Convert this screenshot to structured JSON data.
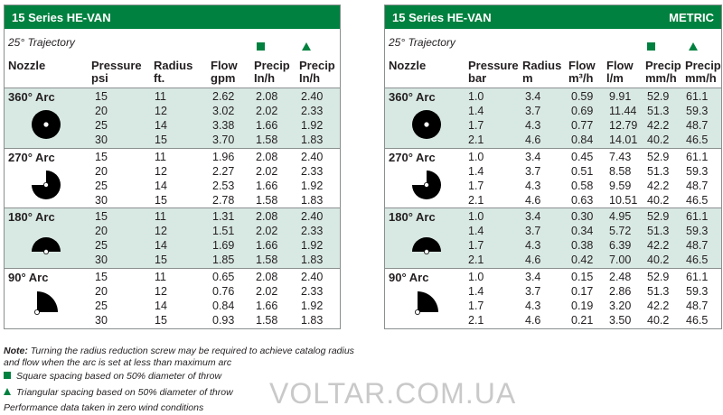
{
  "us": {
    "title": "15 Series HE-VAN",
    "trajectory": "25° Trajectory",
    "headers": {
      "nozzle": "Nozzle",
      "pressure": [
        "Pressure",
        "psi"
      ],
      "radius": [
        "Radius",
        "ft."
      ],
      "flow": [
        "Flow",
        "gpm"
      ],
      "precip_sq": [
        "Precip",
        "In/h"
      ],
      "precip_tri": [
        "Precip",
        "In/h"
      ]
    },
    "groups": [
      {
        "label": "360° Arc",
        "arc": "360",
        "rows": [
          [
            "15",
            "11",
            "2.62",
            "2.08",
            "2.40"
          ],
          [
            "20",
            "12",
            "3.02",
            "2.02",
            "2.33"
          ],
          [
            "25",
            "14",
            "3.38",
            "1.66",
            "1.92"
          ],
          [
            "30",
            "15",
            "3.70",
            "1.58",
            "1.83"
          ]
        ]
      },
      {
        "label": "270° Arc",
        "arc": "270",
        "rows": [
          [
            "15",
            "11",
            "1.96",
            "2.08",
            "2.40"
          ],
          [
            "20",
            "12",
            "2.27",
            "2.02",
            "2.33"
          ],
          [
            "25",
            "14",
            "2.53",
            "1.66",
            "1.92"
          ],
          [
            "30",
            "15",
            "2.78",
            "1.58",
            "1.83"
          ]
        ]
      },
      {
        "label": "180° Arc",
        "arc": "180",
        "rows": [
          [
            "15",
            "11",
            "1.31",
            "2.08",
            "2.40"
          ],
          [
            "20",
            "12",
            "1.51",
            "2.02",
            "2.33"
          ],
          [
            "25",
            "14",
            "1.69",
            "1.66",
            "1.92"
          ],
          [
            "30",
            "15",
            "1.85",
            "1.58",
            "1.83"
          ]
        ]
      },
      {
        "label": "90° Arc",
        "arc": "90",
        "rows": [
          [
            "15",
            "11",
            "0.65",
            "2.08",
            "2.40"
          ],
          [
            "20",
            "12",
            "0.76",
            "2.02",
            "2.33"
          ],
          [
            "25",
            "14",
            "0.84",
            "1.66",
            "1.92"
          ],
          [
            "30",
            "15",
            "0.93",
            "1.58",
            "1.83"
          ]
        ]
      }
    ]
  },
  "metric": {
    "title": "15 Series HE-VAN",
    "badge": "METRIC",
    "trajectory": "25° Trajectory",
    "headers": {
      "nozzle": "Nozzle",
      "pressure": [
        "Pressure",
        "bar"
      ],
      "radius": [
        "Radius",
        "m"
      ],
      "flow_m3": [
        "Flow",
        "m³/h"
      ],
      "flow_l": [
        "Flow",
        "l/m"
      ],
      "precip_sq": [
        "Precip",
        "mm/h"
      ],
      "precip_tri": [
        "Precip",
        "mm/h"
      ]
    },
    "groups": [
      {
        "label": "360° Arc",
        "arc": "360",
        "rows": [
          [
            "1.0",
            "3.4",
            "0.59",
            "9.91",
            "52.9",
            "61.1"
          ],
          [
            "1.4",
            "3.7",
            "0.69",
            "11.44",
            "51.3",
            "59.3"
          ],
          [
            "1.7",
            "4.3",
            "0.77",
            "12.79",
            "42.2",
            "48.7"
          ],
          [
            "2.1",
            "4.6",
            "0.84",
            "14.01",
            "40.2",
            "46.5"
          ]
        ]
      },
      {
        "label": "270° Arc",
        "arc": "270",
        "rows": [
          [
            "1.0",
            "3.4",
            "0.45",
            "7.43",
            "52.9",
            "61.1"
          ],
          [
            "1.4",
            "3.7",
            "0.51",
            "8.58",
            "51.3",
            "59.3"
          ],
          [
            "1.7",
            "4.3",
            "0.58",
            "9.59",
            "42.2",
            "48.7"
          ],
          [
            "2.1",
            "4.6",
            "0.63",
            "10.51",
            "40.2",
            "46.5"
          ]
        ]
      },
      {
        "label": "180° Arc",
        "arc": "180",
        "rows": [
          [
            "1.0",
            "3.4",
            "0.30",
            "4.95",
            "52.9",
            "61.1"
          ],
          [
            "1.4",
            "3.7",
            "0.34",
            "5.72",
            "51.3",
            "59.3"
          ],
          [
            "1.7",
            "4.3",
            "0.38",
            "6.39",
            "42.2",
            "48.7"
          ],
          [
            "2.1",
            "4.6",
            "0.42",
            "7.00",
            "40.2",
            "46.5"
          ]
        ]
      },
      {
        "label": "90° Arc",
        "arc": "90",
        "rows": [
          [
            "1.0",
            "3.4",
            "0.15",
            "2.48",
            "52.9",
            "61.1"
          ],
          [
            "1.4",
            "3.7",
            "0.17",
            "2.86",
            "51.3",
            "59.3"
          ],
          [
            "1.7",
            "4.3",
            "0.19",
            "3.20",
            "42.2",
            "48.7"
          ],
          [
            "2.1",
            "4.6",
            "0.21",
            "3.50",
            "40.2",
            "46.5"
          ]
        ]
      }
    ]
  },
  "notes": {
    "note_label": "Note:",
    "note_text_1": "Turning the radius reduction screw may be required to achieve catalog radius",
    "note_text_2": "and flow when the arc is set at less than maximum arc",
    "square": "Square spacing based on 50% diameter of throw",
    "triangle": "Triangular spacing based on 50% diameter of throw",
    "wind": "Performance data taken in zero wind conditions"
  },
  "watermark": "VOLTAR.COM.UA",
  "colors": {
    "accent": "#00813f",
    "shade": "#d8e8e3"
  }
}
